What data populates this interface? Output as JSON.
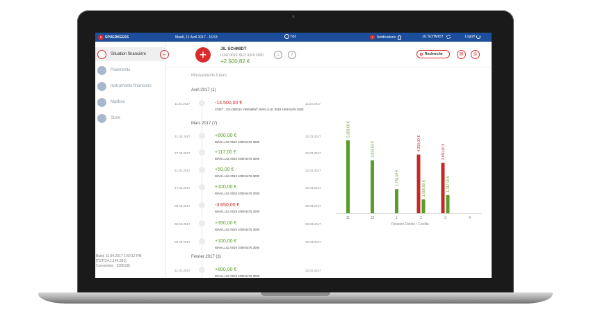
{
  "topbar": {
    "brand": "SPUERKEESS",
    "brand_mark": "S",
    "datetime": "Mardi, 11 Avril 2017 - 16:53",
    "center_label": "hb1",
    "notif_count": "1",
    "notif_label": "Notifications",
    "user": "JIL SCHMIDT",
    "logoff": "Logoff"
  },
  "sidebar": {
    "items": [
      {
        "label": "Situation financière"
      },
      {
        "label": "Paiements"
      },
      {
        "label": "Instruments financiers"
      },
      {
        "label": "Mailbox"
      },
      {
        "label": "Store"
      }
    ],
    "build": "Build: 11.04.2017 1:50:12 PM",
    "build_tag": "[TSTC/4.1.144.391]",
    "convention": "Convention : 3390136"
  },
  "header": {
    "back": "←",
    "plus": "+",
    "name": "JIL SCHMIDT",
    "iban": "LU47 0019 3512 9329 2000",
    "balance": "+2.500,82 €",
    "chevron": "⌄",
    "info": "i",
    "search": "Recherche",
    "pdf": "▤",
    "print": "⎙"
  },
  "list": {
    "title": "Mouvements futurs",
    "months": [
      "Avril 2017 (1)",
      "Mars 2017 (7)",
      "Février 2017 (3)"
    ],
    "transactions": [
      {
        "date1": "11.04.2017",
        "amount": "-14.500,00  €",
        "sign": "neg",
        "desc": "S'NET : 101-000012 VIREMENT IBAN LU11 0019 1009 5476 3000",
        "date2": "11.04.2017"
      },
      {
        "date1": "21.03.2017",
        "amount": "+600,00  €",
        "sign": "pos",
        "desc": "IBAN LU11 0019 1009 5476 3000",
        "date2": "22.03.2017"
      },
      {
        "date1": "27.03.2017",
        "amount": "+117,00  €",
        "sign": "pos",
        "desc": "IBAN LU11 0019 1009 5476 3000",
        "date2": "22.03.2017"
      },
      {
        "date1": "21.03.2017",
        "amount": "+50,00  €",
        "sign": "pos",
        "desc": "IBAN LU11 0019 1009 5476 3000",
        "date2": "22.03.2017"
      },
      {
        "date1": "17.03.2017",
        "amount": "+100,00  €",
        "sign": "pos",
        "desc": "IBAN LU11 0019 1009 5476 3000",
        "date2": "20.03.2017"
      },
      {
        "date1": "09.03.2017",
        "amount": "-3.650,00  €",
        "sign": "neg",
        "desc": "IBAN LU11 0019 1009 5476 3000",
        "date2": "09.03.2017"
      },
      {
        "date1": "06.03.2017",
        "amount": "+350,00  €",
        "sign": "pos",
        "desc": "IBAN LU11 0019 1009 5476 3000",
        "date2": "06.03.2017"
      },
      {
        "date1": "03.03.2017",
        "amount": "+100,00  €",
        "sign": "pos",
        "desc": "IBAN LU11 0019 1009 5476 3000",
        "date2": "03.03.2017"
      },
      {
        "date1": "21.02.2017",
        "amount": "+600,00  €",
        "sign": "pos",
        "desc": "IBAN LU11 0019 1009 5476 3000",
        "date2": "22.02.2017"
      }
    ]
  },
  "colors": {
    "credit": "#5a9e2a",
    "debit": "#c62828",
    "brand_red": "#d92b2b",
    "topbar": "#1c4e9b"
  },
  "chart_data": {
    "type": "bar",
    "xlabel": "Relation Debits / Credits",
    "categories": [
      "11",
      "12",
      "1",
      "2",
      "3",
      "4"
    ],
    "series": [
      {
        "values": [
          null,
          null,
          null,
          4250,
          3650,
          null
        ]
      },
      {
        "values": [
          5283,
          3833.53,
          1750,
          1000,
          1317,
          null
        ]
      }
    ],
    "data_labels": [
      [
        null,
        null,
        null,
        "4.250,00 €",
        "3.650,00 €",
        null
      ],
      [
        "5.283,00 €",
        "3.833,53 €",
        "1.750,00 €",
        "1.000,00 €",
        "1.317,00 €",
        null
      ]
    ],
    "ylim": [
      0,
      5283
    ]
  }
}
